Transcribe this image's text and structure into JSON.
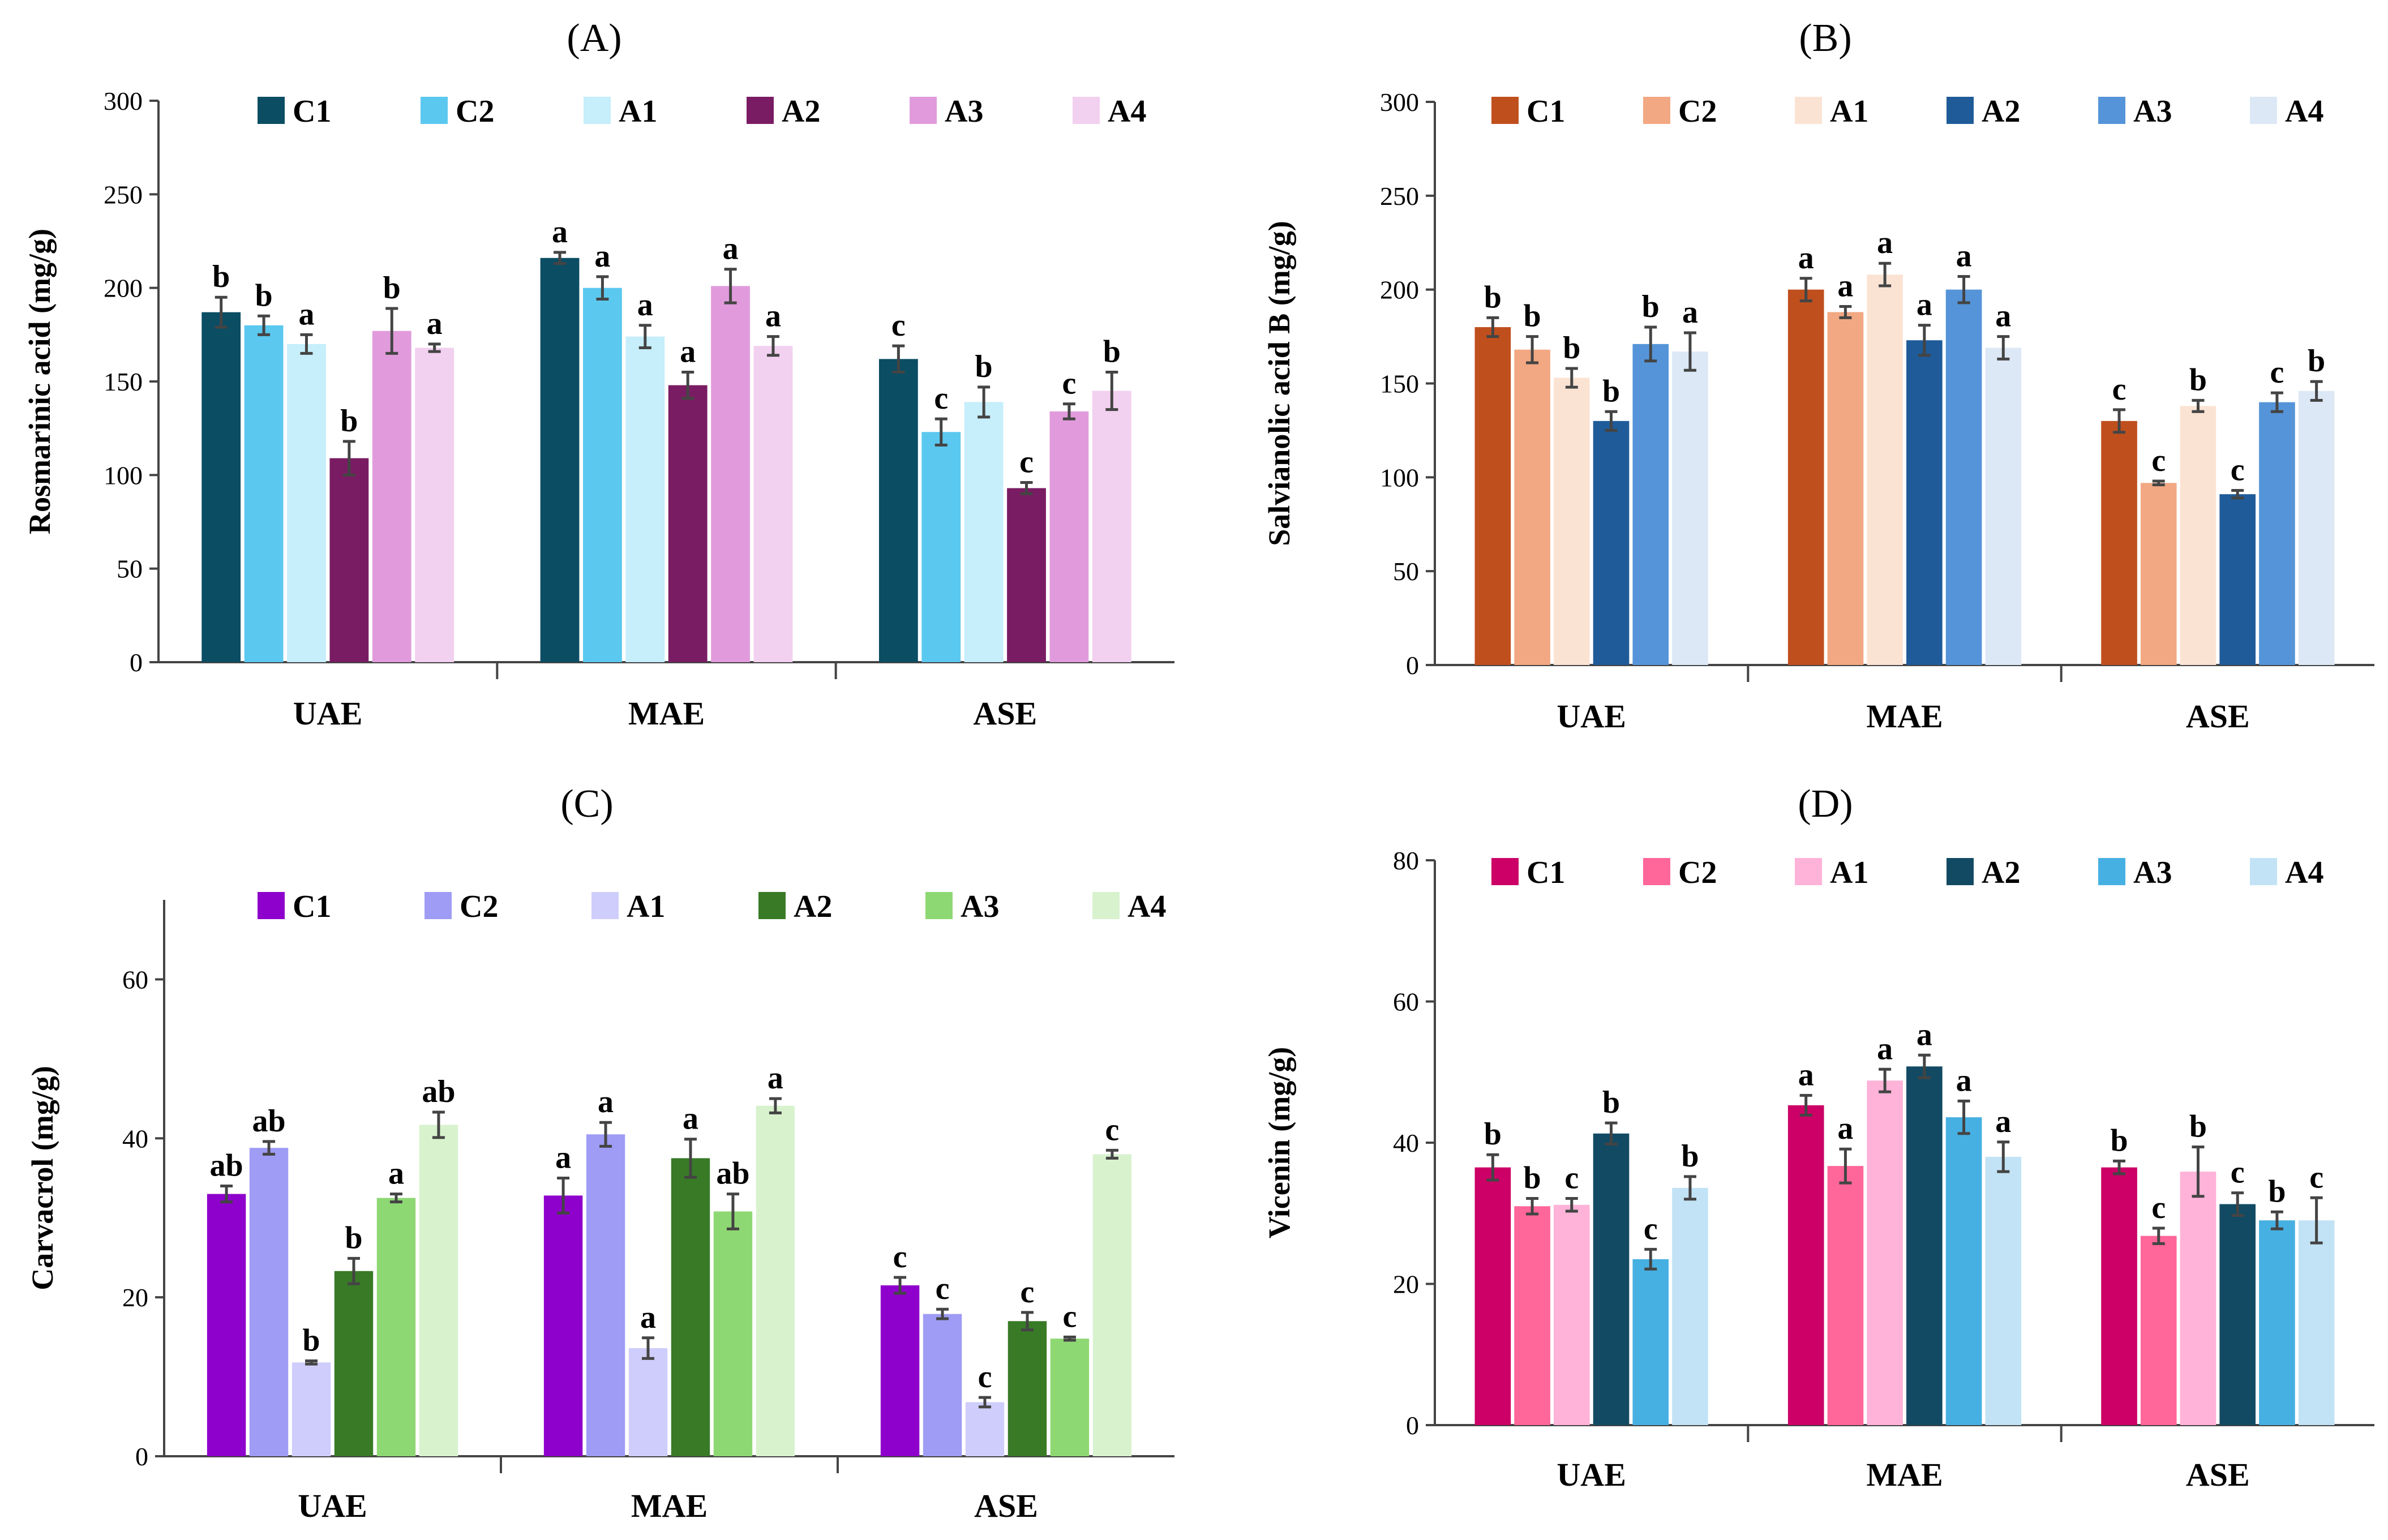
{
  "chart_data": [
    {
      "panel": "(A)",
      "type": "bar",
      "ylabel": "Rosmarinic acid (mg/g)",
      "xlabel": "",
      "ylim": [
        0,
        300
      ],
      "yticks": [
        0,
        50,
        100,
        150,
        200,
        250,
        300
      ],
      "categories": [
        "UAE",
        "MAE",
        "ASE"
      ],
      "legend_position": "top",
      "series": [
        {
          "name": "C1",
          "color": "#0b4d63",
          "values": [
            187,
            216,
            162
          ],
          "errors": [
            8,
            3,
            7
          ],
          "labels": [
            "b",
            "a",
            "c"
          ]
        },
        {
          "name": "C2",
          "color": "#5bc8ef",
          "values": [
            180,
            200,
            123
          ],
          "errors": [
            5,
            6,
            7
          ],
          "labels": [
            "b",
            "a",
            "c"
          ]
        },
        {
          "name": "A1",
          "color": "#c6eefb",
          "values": [
            170,
            174,
            139
          ],
          "errors": [
            5,
            6,
            8
          ],
          "labels": [
            "a",
            "a",
            "b"
          ]
        },
        {
          "name": "A2",
          "color": "#7a1c63",
          "values": [
            109,
            148,
            93
          ],
          "errors": [
            9,
            7,
            3
          ],
          "labels": [
            "b",
            "a",
            "c"
          ]
        },
        {
          "name": "A3",
          "color": "#e19bdc",
          "values": [
            177,
            201,
            134
          ],
          "errors": [
            12,
            9,
            4
          ],
          "labels": [
            "b",
            "a",
            "c"
          ]
        },
        {
          "name": "A4",
          "color": "#f2d0ef",
          "values": [
            168,
            169,
            145
          ],
          "errors": [
            2,
            5,
            10
          ],
          "labels": [
            "a",
            "a",
            "b"
          ]
        }
      ]
    },
    {
      "panel": "(B)",
      "type": "bar",
      "ylabel": "Salvianolic acid B (mg/g)",
      "xlabel": "",
      "ylim": [
        0,
        300
      ],
      "yticks": [
        0,
        50,
        100,
        150,
        200,
        250,
        300
      ],
      "categories": [
        "UAE",
        "MAE",
        "ASE"
      ],
      "legend_position": "top",
      "series": [
        {
          "name": "C1",
          "color": "#c04f1e",
          "values": [
            180,
            200,
            130
          ],
          "errors": [
            5,
            6,
            6
          ],
          "labels": [
            "b",
            "a",
            "c"
          ]
        },
        {
          "name": "C2",
          "color": "#f2a882",
          "values": [
            168,
            188,
            97
          ],
          "errors": [
            7,
            3,
            1
          ],
          "labels": [
            "b",
            "a",
            "c"
          ]
        },
        {
          "name": "A1",
          "color": "#fbe3d4",
          "values": [
            153,
            208,
            138
          ],
          "errors": [
            5,
            6,
            3
          ],
          "labels": [
            "b",
            "a",
            "b"
          ]
        },
        {
          "name": "A2",
          "color": "#1f5b99",
          "values": [
            130,
            173,
            91
          ],
          "errors": [
            5,
            8,
            2
          ],
          "labels": [
            "b",
            "a",
            "c"
          ]
        },
        {
          "name": "A3",
          "color": "#5594d8",
          "values": [
            171,
            200,
            140
          ],
          "errors": [
            9,
            7,
            5
          ],
          "labels": [
            "b",
            "a",
            "c"
          ]
        },
        {
          "name": "A4",
          "color": "#dde8f6",
          "values": [
            167,
            169,
            146
          ],
          "errors": [
            10,
            6,
            5
          ],
          "labels": [
            "a",
            "a",
            "b"
          ]
        }
      ]
    },
    {
      "panel": "(C)",
      "type": "bar",
      "ylabel": "Carvacrol (mg/g)",
      "xlabel": "",
      "ylim": [
        0,
        70
      ],
      "yticks": [
        0,
        20,
        40,
        60
      ],
      "categories": [
        "UAE",
        "MAE",
        "ASE"
      ],
      "legend_position": "top",
      "series": [
        {
          "name": "C1",
          "color": "#8e00cc",
          "values": [
            33,
            32.8,
            21.5
          ],
          "errors": [
            1,
            2.2,
            1
          ],
          "labels": [
            "ab",
            "a",
            "c"
          ]
        },
        {
          "name": "C2",
          "color": "#9f9cf5",
          "values": [
            38.8,
            40.5,
            17.9
          ],
          "errors": [
            0.8,
            1.5,
            0.6
          ],
          "labels": [
            "ab",
            "a",
            "c"
          ]
        },
        {
          "name": "A1",
          "color": "#cfcdfb",
          "values": [
            11.8,
            13.6,
            6.8
          ],
          "errors": [
            0.2,
            1.3,
            0.6
          ],
          "labels": [
            "b",
            "a",
            "c"
          ]
        },
        {
          "name": "A2",
          "color": "#397a27",
          "values": [
            23.3,
            37.5,
            17
          ],
          "errors": [
            1.6,
            2.4,
            1.1
          ],
          "labels": [
            "b",
            "a",
            "c"
          ]
        },
        {
          "name": "A3",
          "color": "#8ed873",
          "values": [
            32.5,
            30.8,
            14.8
          ],
          "errors": [
            0.5,
            2.2,
            0.2
          ],
          "labels": [
            "a",
            "ab",
            "c"
          ]
        },
        {
          "name": "A4",
          "color": "#d8f2ce",
          "values": [
            41.7,
            44.1,
            38
          ],
          "errors": [
            1.6,
            0.9,
            0.5
          ],
          "labels": [
            "ab",
            "a",
            "c"
          ]
        }
      ]
    },
    {
      "panel": "(D)",
      "type": "bar",
      "ylabel": "Vicenin (mg/g)",
      "xlabel": "",
      "ylim": [
        0,
        80
      ],
      "yticks": [
        0,
        20,
        40,
        60,
        80
      ],
      "categories": [
        "UAE",
        "MAE",
        "ASE"
      ],
      "legend_position": "top",
      "series": [
        {
          "name": "C1",
          "color": "#cc0066",
          "values": [
            36.5,
            45.3,
            36.5
          ],
          "errors": [
            1.8,
            1.4,
            0.9
          ],
          "labels": [
            "b",
            "a",
            "b"
          ]
        },
        {
          "name": "C2",
          "color": "#ff6699",
          "values": [
            31,
            36.7,
            26.8
          ],
          "errors": [
            1.1,
            2.4,
            1.1
          ],
          "labels": [
            "b",
            "a",
            "c"
          ]
        },
        {
          "name": "A1",
          "color": "#ffb3d9",
          "values": [
            31.2,
            48.8,
            35.9
          ],
          "errors": [
            0.9,
            1.6,
            3.5
          ],
          "labels": [
            "c",
            "a",
            "b"
          ]
        },
        {
          "name": "A2",
          "color": "#124a63",
          "values": [
            41.3,
            50.8,
            31.3
          ],
          "errors": [
            1.5,
            1.6,
            1.6
          ],
          "labels": [
            "b",
            "a",
            "c"
          ]
        },
        {
          "name": "A3",
          "color": "#47b0e2",
          "values": [
            23.5,
            43.6,
            29
          ],
          "errors": [
            1.4,
            2.3,
            1.2
          ],
          "labels": [
            "c",
            "a",
            "b"
          ]
        },
        {
          "name": "A4",
          "color": "#c2e3f5",
          "values": [
            33.6,
            38,
            29
          ],
          "errors": [
            1.6,
            2.1,
            3.2
          ],
          "labels": [
            "b",
            "a",
            "c"
          ]
        }
      ]
    }
  ]
}
